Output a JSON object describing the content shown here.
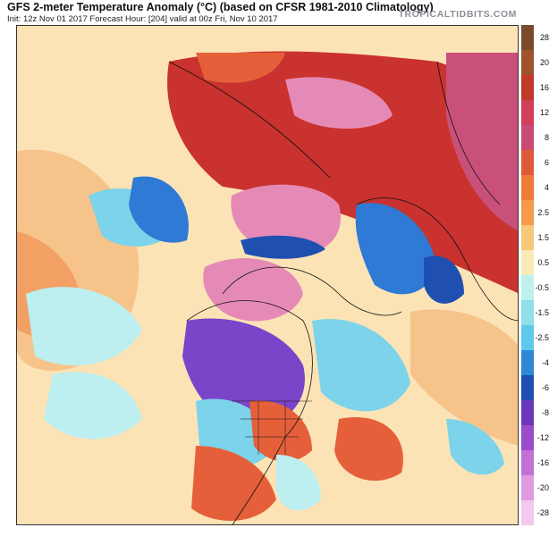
{
  "header": {
    "title": "GFS 2-meter Temperature Anomaly (°C) (based on CFSR 1981-2010 Climatology)",
    "subtitle": "Init: 12z Nov 01 2017   Forecast Hour: [204]   valid at 00z Fri, Nov 10 2017",
    "brand": "TROPICALTIDBITS.COM"
  },
  "legend": {
    "labels": [
      "28",
      "20",
      "16",
      "12",
      "8",
      "6",
      "4",
      "2.5",
      "1.5",
      "0.5",
      "-0.5",
      "-1.5",
      "-2.5",
      "-4",
      "-6",
      "-8",
      "-12",
      "-16",
      "-20",
      "-28"
    ],
    "colors": [
      "#7a4a2a",
      "#a0522d",
      "#c0392b",
      "#d13f5b",
      "#c94a73",
      "#e05a3a",
      "#ef7a3a",
      "#f49a4a",
      "#f7c77a",
      "#fbe9b8",
      "#bff0ee",
      "#8fe0e8",
      "#5cc8ea",
      "#2e88d6",
      "#1f4fb0",
      "#6a38b8",
      "#9b4cc8",
      "#c471d6",
      "#de9bde",
      "#f2c8ec"
    ]
  },
  "map_colors": {
    "warm_light": "#fbe3b5",
    "warm": "#f3a064",
    "warm_strong": "#e5603a",
    "hot": "#c9322e",
    "hot_pink": "#c9507a",
    "pink_light": "#e58ab6",
    "cool_light": "#bdeef0",
    "cool": "#7cd3ea",
    "cold": "#2e7ad4",
    "cold_deep": "#1f4fb0",
    "purple": "#7a45c8"
  }
}
